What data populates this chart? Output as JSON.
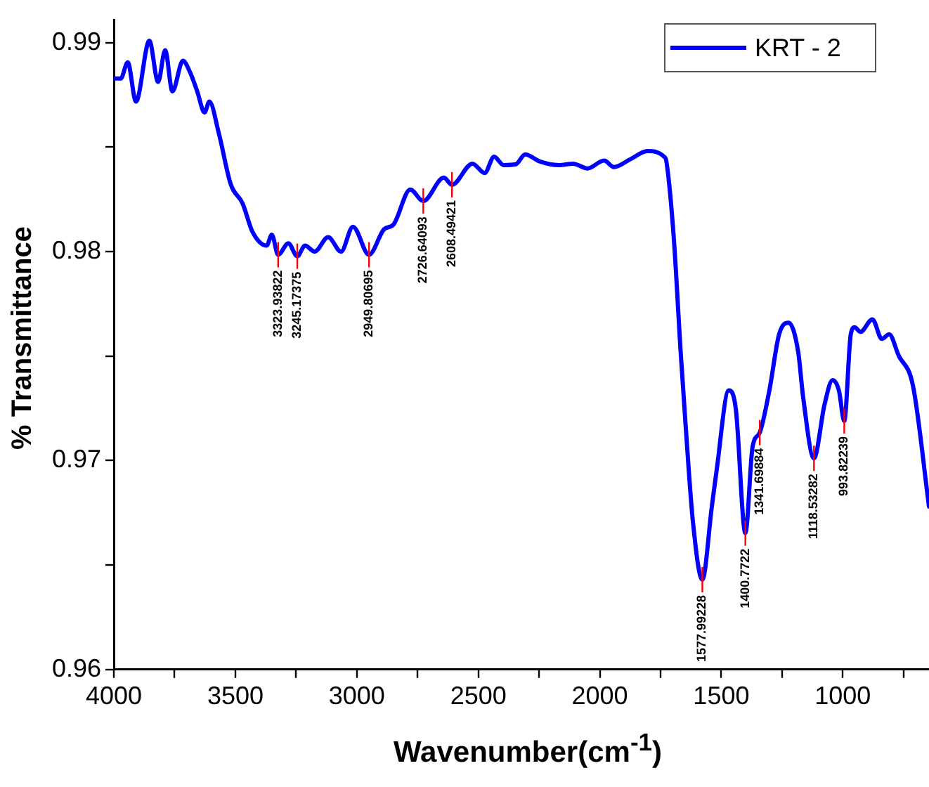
{
  "chart_data": {
    "type": "line",
    "xlabel": "Wavenumber(cm$^{-1}$)",
    "ylabel": "% Transmittance",
    "xlim": [
      4000,
      645
    ],
    "ylim": [
      0.96,
      0.9911
    ],
    "xticks": [
      4000,
      {
        "value": 3750,
        "label": null
      },
      3500,
      {
        "value": 3250,
        "label": null
      },
      3000,
      {
        "value": 2750,
        "label": null
      },
      2500,
      {
        "value": 2250,
        "label": null
      },
      2000,
      {
        "value": 1750,
        "label": null
      },
      1500,
      {
        "value": 1250,
        "label": null
      },
      1000,
      {
        "value": 750,
        "label": null
      }
    ],
    "yticks": [
      0.96,
      {
        "value": 0.965,
        "label": null
      },
      0.97,
      {
        "value": 0.975,
        "label": null
      },
      0.98,
      {
        "value": 0.985,
        "label": null
      },
      0.99
    ],
    "grid": false,
    "legend": "top right",
    "marker": "none",
    "line_style": "solid",
    "series": [
      {
        "name": "KRT - 2",
        "color": "#0000ff",
        "x": [
          4000,
          3972,
          3943,
          3909,
          3854,
          3818,
          3789,
          3759,
          3716,
          3686,
          3657,
          3627,
          3607,
          3568,
          3519,
          3470,
          3430,
          3371,
          3350,
          3323.9,
          3282,
          3245.2,
          3213,
          3174,
          3118,
          3065,
          3016,
          2949.8,
          2888,
          2849,
          2780,
          2726.6,
          2642,
          2608.5,
          2524,
          2474,
          2435,
          2396,
          2346,
          2307,
          2248,
          2169,
          2110,
          2051,
          1982,
          1942,
          1873,
          1804,
          1735,
          1726,
          1696,
          1667,
          1646,
          1617,
          1578,
          1539,
          1519,
          1469,
          1440,
          1400.8,
          1371,
          1341.7,
          1302,
          1262,
          1223,
          1183,
          1164,
          1118.5,
          1075,
          1042,
          1016,
          993.8,
          967,
          951,
          927,
          878,
          839,
          809,
          770,
          711,
          645
        ],
        "values": [
          0.98828,
          0.98828,
          0.98906,
          0.98718,
          0.99009,
          0.98812,
          0.98964,
          0.98767,
          0.98913,
          0.98857,
          0.98767,
          0.98666,
          0.98718,
          0.98566,
          0.98322,
          0.9823,
          0.98096,
          0.98029,
          0.98081,
          0.97985,
          0.9804,
          0.97978,
          0.98029,
          0.98,
          0.98069,
          0.98,
          0.98119,
          0.97985,
          0.98107,
          0.9813,
          0.98297,
          0.98242,
          0.98354,
          0.9832,
          0.98421,
          0.98376,
          0.98454,
          0.98414,
          0.98418,
          0.98465,
          0.98432,
          0.98414,
          0.98421,
          0.98398,
          0.98436,
          0.98405,
          0.98443,
          0.98481,
          0.98454,
          0.98432,
          0.98074,
          0.97517,
          0.97156,
          0.96711,
          0.9643,
          0.96778,
          0.96955,
          0.97336,
          0.97246,
          0.96653,
          0.97067,
          0.97134,
          0.97336,
          0.97604,
          0.9766,
          0.97517,
          0.97313,
          0.97011,
          0.97268,
          0.97385,
          0.97336,
          0.9719,
          0.97604,
          0.97638,
          0.97616,
          0.97676,
          0.97582,
          0.97604,
          0.97503,
          0.97358,
          0.9678
        ]
      }
    ],
    "annotations": [
      {
        "text": "3323.93822",
        "x": 3323.9,
        "y": 0.97985
      },
      {
        "text": "3245.17375",
        "x": 3245.2,
        "y": 0.97978
      },
      {
        "text": "2949.80695",
        "x": 2949.8,
        "y": 0.97985
      },
      {
        "text": "2726.64093",
        "x": 2726.6,
        "y": 0.98242
      },
      {
        "text": "2608.49421",
        "x": 2608.5,
        "y": 0.9832
      },
      {
        "text": "1577.99228",
        "x": 1578,
        "y": 0.9643
      },
      {
        "text": "1400.7722",
        "x": 1400.8,
        "y": 0.96653
      },
      {
        "text": "1341.69884",
        "x": 1341.7,
        "y": 0.97134
      },
      {
        "text": "1118.53282",
        "x": 1118.5,
        "y": 0.97011
      },
      {
        "text": "993.82239",
        "x": 993.8,
        "y": 0.9719
      }
    ]
  }
}
